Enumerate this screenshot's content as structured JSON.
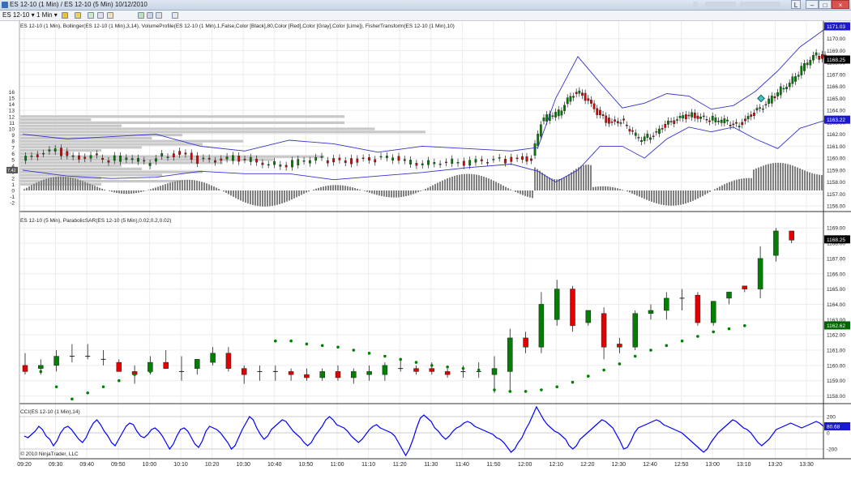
{
  "window": {
    "title": "ES 12-10 (1 Min) / ES 12-10 (5 Min)  10/12/2010",
    "btn_l": "L"
  },
  "toolbar": {
    "instrument": "ES 12-10",
    "interval": "1 Min"
  },
  "panels": {
    "top_label": "ES 12-10 (1 Min), Bollinger(ES 12-10 (1 Min),3,14), VolumeProfile(ES 12-10 (1 Min),1,False,Color [Black],80,Color [Red],Color [Gray],Color [Lime]), FisherTransform(ES 12-10 (1 Min),10)",
    "mid_label": "ES 12-10 (5 Min), ParabolicSAR(ES 12-10 (5 Min),0.02,0.2,0.02)",
    "cci_label": "CCI(ES 12-10 (1 Min),14)",
    "copyright": "© 2010 NinjaTrader, LLC"
  },
  "chart_data": [
    {
      "type": "candlestick",
      "name_panel": "top",
      "price_axis": [
        "1170.00",
        "1169.00",
        "1168.00",
        "1167.00",
        "1166.00",
        "1165.00",
        "1164.00",
        "1163.00",
        "1162.00",
        "1161.00",
        "1160.00",
        "1159.00",
        "1158.00",
        "1157.00",
        "1156.00"
      ],
      "fisher_axis": [
        "16",
        "15",
        "14",
        "13",
        "12",
        "11",
        "10",
        "9",
        "8",
        "7",
        "6",
        "5",
        "4",
        "3",
        "2",
        "1",
        "0",
        "-1",
        "-2"
      ],
      "ylim": [
        1155.6,
        1171.2
      ],
      "markers": {
        "price_last": "1168.25",
        "bb_upper": "1171.03",
        "bb_lower": "1163.22",
        "fisher_tag": "7.42"
      },
      "price_path_1min": [
        [
          0,
          1159.8
        ],
        [
          8,
          1160.2
        ],
        [
          16,
          1160.6
        ],
        [
          24,
          1160.0
        ],
        [
          32,
          1160.3
        ],
        [
          40,
          1159.9
        ],
        [
          48,
          1160.1
        ],
        [
          56,
          1159.6
        ],
        [
          64,
          1160.2
        ],
        [
          72,
          1160.4
        ],
        [
          80,
          1159.8
        ],
        [
          88,
          1159.7
        ],
        [
          96,
          1160.0
        ],
        [
          104,
          1159.9
        ],
        [
          112,
          1159.6
        ],
        [
          120,
          1159.5
        ],
        [
          128,
          1159.8
        ],
        [
          136,
          1159.9
        ],
        [
          144,
          1159.7
        ],
        [
          152,
          1159.8
        ],
        [
          160,
          1159.9
        ],
        [
          168,
          1160.0
        ],
        [
          176,
          1159.6
        ],
        [
          184,
          1159.7
        ],
        [
          192,
          1159.8
        ],
        [
          200,
          1159.6
        ],
        [
          208,
          1159.7
        ],
        [
          216,
          1159.8
        ],
        [
          224,
          1159.9
        ],
        [
          230,
          1160.0
        ],
        [
          234,
          1163.0
        ],
        [
          238,
          1163.6
        ],
        [
          242,
          1163.8
        ],
        [
          246,
          1165.0
        ],
        [
          250,
          1165.6
        ],
        [
          254,
          1165.0
        ],
        [
          258,
          1164.0
        ],
        [
          262,
          1163.3
        ],
        [
          266,
          1163.0
        ],
        [
          270,
          1163.2
        ],
        [
          274,
          1162.4
        ],
        [
          278,
          1161.6
        ],
        [
          282,
          1161.8
        ],
        [
          286,
          1162.2
        ],
        [
          290,
          1162.8
        ],
        [
          294,
          1163.0
        ],
        [
          298,
          1163.4
        ],
        [
          302,
          1163.6
        ],
        [
          306,
          1163.5
        ],
        [
          310,
          1163.3
        ],
        [
          314,
          1163.2
        ],
        [
          318,
          1163.0
        ],
        [
          322,
          1162.7
        ],
        [
          326,
          1163.2
        ],
        [
          330,
          1163.8
        ],
        [
          334,
          1164.2
        ],
        [
          338,
          1165.0
        ],
        [
          342,
          1165.8
        ],
        [
          346,
          1166.4
        ],
        [
          350,
          1167.2
        ],
        [
          354,
          1168.0
        ],
        [
          358,
          1168.6
        ],
        [
          362,
          1168.3
        ]
      ],
      "bollinger_upper": [
        [
          0,
          1162
        ],
        [
          20,
          1161.6
        ],
        [
          40,
          1161.8
        ],
        [
          60,
          1162
        ],
        [
          80,
          1161
        ],
        [
          100,
          1160.6
        ],
        [
          120,
          1161.5
        ],
        [
          140,
          1161.2
        ],
        [
          160,
          1160.5
        ],
        [
          180,
          1161
        ],
        [
          200,
          1160.8
        ],
        [
          220,
          1160.6
        ],
        [
          232,
          1160.9
        ],
        [
          240,
          1165
        ],
        [
          250,
          1168.5
        ],
        [
          260,
          1166.3
        ],
        [
          270,
          1164.2
        ],
        [
          280,
          1164.6
        ],
        [
          290,
          1165.4
        ],
        [
          300,
          1165.2
        ],
        [
          310,
          1164.1
        ],
        [
          320,
          1164.4
        ],
        [
          330,
          1165.6
        ],
        [
          340,
          1167.3
        ],
        [
          350,
          1169.3
        ],
        [
          362,
          1170.9
        ]
      ],
      "bollinger_lower": [
        [
          0,
          1159
        ],
        [
          20,
          1158.5
        ],
        [
          40,
          1158.3
        ],
        [
          60,
          1158.4
        ],
        [
          80,
          1158.9
        ],
        [
          100,
          1158.7
        ],
        [
          120,
          1158.7
        ],
        [
          140,
          1158.2
        ],
        [
          160,
          1158.5
        ],
        [
          180,
          1158.8
        ],
        [
          200,
          1159.2
        ],
        [
          220,
          1159.5
        ],
        [
          232,
          1158.9
        ],
        [
          240,
          1158
        ],
        [
          250,
          1159
        ],
        [
          260,
          1161
        ],
        [
          270,
          1161
        ],
        [
          280,
          1160
        ],
        [
          290,
          1161.6
        ],
        [
          300,
          1162.6
        ],
        [
          310,
          1162.2
        ],
        [
          320,
          1162.6
        ],
        [
          330,
          1161.6
        ],
        [
          340,
          1160.8
        ],
        [
          350,
          1162.5
        ],
        [
          362,
          1163.2
        ]
      ],
      "volume_profile": [
        [
          12,
          0.32
        ],
        [
          11.5,
          0.07
        ],
        [
          11,
          0.32
        ],
        [
          10.5,
          0.1
        ],
        [
          10,
          0.35
        ],
        [
          9.5,
          0.4
        ],
        [
          9,
          0.16
        ],
        [
          8.5,
          0.13
        ],
        [
          8,
          0.22
        ],
        [
          7.5,
          0.18
        ],
        [
          7,
          0.12
        ],
        [
          6.5,
          0.08
        ],
        [
          6,
          0.05
        ],
        [
          5.5,
          0.3
        ],
        [
          5,
          0.25
        ],
        [
          4.5,
          0.2
        ],
        [
          4,
          0.1
        ],
        [
          3.5,
          0.12
        ],
        [
          3,
          0.18
        ],
        [
          2.5,
          0.14
        ],
        [
          2,
          0.08
        ],
        [
          1.5,
          0.16
        ],
        [
          1,
          0.08
        ]
      ]
    },
    {
      "type": "candlestick",
      "name_panel": "middle",
      "price_axis": [
        "1169.00",
        "1168.00",
        "1167.00",
        "1166.00",
        "1165.00",
        "1164.00",
        "1163.00",
        "1162.00",
        "1161.00",
        "1160.00",
        "1159.00",
        "1158.00"
      ],
      "ylim": [
        1157.5,
        1169.7
      ],
      "markers": {
        "price_last": "1168.25",
        "sar_last": "1162.62"
      },
      "candles_5min": [
        [
          1160.0,
          1160.8,
          1159.4,
          1159.6
        ],
        [
          1159.8,
          1160.4,
          1159.4,
          1160.0
        ],
        [
          1160.0,
          1161.0,
          1159.6,
          1160.6
        ],
        [
          1160.6,
          1161.4,
          1160.2,
          1160.6
        ],
        [
          1160.6,
          1161.4,
          1160.4,
          1160.6
        ],
        [
          1160.4,
          1161.0,
          1160.0,
          1160.4
        ],
        [
          1160.2,
          1160.4,
          1159.6,
          1159.6
        ],
        [
          1159.6,
          1160.0,
          1158.8,
          1159.4
        ],
        [
          1159.6,
          1160.6,
          1159.4,
          1160.2
        ],
        [
          1160.2,
          1161.0,
          1159.8,
          1159.8
        ],
        [
          1159.6,
          1160.6,
          1159.0,
          1159.6
        ],
        [
          1159.8,
          1160.4,
          1159.4,
          1160.4
        ],
        [
          1160.2,
          1161.2,
          1160.0,
          1160.8
        ],
        [
          1160.8,
          1161.2,
          1159.6,
          1159.8
        ],
        [
          1159.8,
          1160.0,
          1158.8,
          1159.4
        ],
        [
          1159.6,
          1160.0,
          1159.0,
          1159.6
        ],
        [
          1159.6,
          1160.0,
          1159.0,
          1159.6
        ],
        [
          1159.6,
          1159.8,
          1159.0,
          1159.4
        ],
        [
          1159.4,
          1159.8,
          1159.0,
          1159.2
        ],
        [
          1159.2,
          1159.8,
          1159.0,
          1159.6
        ],
        [
          1159.6,
          1160.0,
          1159.0,
          1159.2
        ],
        [
          1159.2,
          1159.8,
          1158.8,
          1159.6
        ],
        [
          1159.4,
          1160.0,
          1159.0,
          1159.6
        ],
        [
          1159.4,
          1160.2,
          1159.0,
          1160.0
        ],
        [
          1159.8,
          1160.4,
          1159.6,
          1159.8
        ],
        [
          1159.8,
          1160.0,
          1159.4,
          1159.6
        ],
        [
          1159.8,
          1160.2,
          1159.4,
          1159.6
        ],
        [
          1159.6,
          1159.8,
          1159.2,
          1159.4
        ],
        [
          1159.6,
          1160.0,
          1159.2,
          1159.6
        ],
        [
          1159.6,
          1160.2,
          1159.2,
          1159.6
        ],
        [
          1159.4,
          1160.6,
          1158.2,
          1159.8
        ],
        [
          1159.6,
          1162.4,
          1158.2,
          1161.8
        ],
        [
          1161.8,
          1162.2,
          1160.8,
          1161.2
        ],
        [
          1161.2,
          1164.8,
          1160.8,
          1164.0
        ],
        [
          1163.0,
          1165.6,
          1162.6,
          1165.0
        ],
        [
          1165.0,
          1165.2,
          1162.2,
          1162.6
        ],
        [
          1162.8,
          1163.6,
          1162.6,
          1163.6
        ],
        [
          1163.4,
          1163.8,
          1160.4,
          1161.2
        ],
        [
          1161.4,
          1161.8,
          1160.8,
          1161.2
        ],
        [
          1161.2,
          1163.6,
          1161.0,
          1163.4
        ],
        [
          1163.4,
          1164.0,
          1163.0,
          1163.6
        ],
        [
          1163.6,
          1164.8,
          1163.0,
          1164.4
        ],
        [
          1164.4,
          1165.0,
          1163.6,
          1164.4
        ],
        [
          1164.6,
          1164.8,
          1162.6,
          1162.8
        ],
        [
          1162.8,
          1164.2,
          1162.6,
          1164.2
        ],
        [
          1164.4,
          1164.8,
          1164.0,
          1164.8
        ],
        [
          1165.2,
          1165.2,
          1164.8,
          1165.0
        ],
        [
          1165.0,
          1167.8,
          1164.4,
          1167.0
        ],
        [
          1167.2,
          1169.0,
          1166.8,
          1168.8
        ],
        [
          1168.8,
          1168.8,
          1168.0,
          1168.2
        ]
      ],
      "parabolic_sar": [
        [
          0,
          1159.6
        ],
        [
          1,
          1158.6
        ],
        [
          2,
          1157.8
        ],
        [
          3,
          1158.2
        ],
        [
          4,
          1158.6
        ],
        [
          5,
          1159.0
        ],
        [
          6,
          1159.4
        ],
        [
          7,
          1159.6
        ],
        [
          8,
          1161.6
        ],
        [
          9,
          1161.6
        ],
        [
          10,
          1161.4
        ],
        [
          11,
          1161.3
        ],
        [
          12,
          1161.2
        ],
        [
          13,
          1161.0
        ],
        [
          14,
          1160.8
        ],
        [
          15,
          1160.6
        ],
        [
          16,
          1160.4
        ],
        [
          17,
          1160.2
        ],
        [
          18,
          1160.0
        ],
        [
          19,
          1159.9
        ],
        [
          20,
          1159.8
        ],
        [
          21,
          1159.7
        ],
        [
          22,
          1158.4
        ],
        [
          23,
          1158.3
        ],
        [
          24,
          1158.3
        ],
        [
          25,
          1158.4
        ],
        [
          26,
          1158.6
        ],
        [
          27,
          1158.9
        ],
        [
          28,
          1159.3
        ],
        [
          29,
          1159.7
        ],
        [
          30,
          1160.1
        ],
        [
          31,
          1160.6
        ],
        [
          32,
          1161.0
        ],
        [
          33,
          1161.3
        ],
        [
          34,
          1161.6
        ],
        [
          35,
          1161.9
        ],
        [
          36,
          1162.2
        ],
        [
          37,
          1162.4
        ],
        [
          38,
          1162.6
        ]
      ]
    },
    {
      "type": "line",
      "name_panel": "cci",
      "series": [
        {
          "name": "CCI",
          "color": "#0000ff"
        }
      ],
      "y_axis": [
        "200",
        "0",
        "-200"
      ],
      "ylim": [
        -320,
        300
      ],
      "markers": {
        "cci_last": "80.68"
      },
      "values": [
        -40,
        -60,
        -20,
        20,
        80,
        40,
        -40,
        -80,
        -160,
        -100,
        0,
        60,
        80,
        40,
        -20,
        -80,
        -120,
        -60,
        40,
        120,
        160,
        100,
        20,
        -40,
        -120,
        -160,
        -80,
        0,
        80,
        120,
        100,
        20,
        -40,
        -60,
        -20,
        40,
        60,
        20,
        -40,
        -120,
        -200,
        -140,
        -40,
        40,
        60,
        20,
        -60,
        -140,
        -180,
        -100,
        20,
        80,
        60,
        40,
        0,
        -60,
        -120,
        -200,
        -160,
        -60,
        40,
        120,
        200,
        160,
        60,
        -20,
        -80,
        -40,
        40,
        80,
        120,
        160,
        140,
        80,
        20,
        -20,
        -60,
        -120,
        -160,
        -120,
        -40,
        20,
        80,
        160,
        200,
        160,
        100,
        80,
        60,
        20,
        -40,
        -80,
        -120,
        -80,
        -20,
        40,
        80,
        100,
        60,
        40,
        20,
        0,
        -40,
        -120,
        -200,
        -280,
        -200,
        -80,
        60,
        180,
        220,
        180,
        140,
        60,
        20,
        -40,
        -80,
        -40,
        20,
        60,
        80,
        120,
        140,
        120,
        80,
        60,
        40,
        20,
        0,
        -20,
        -60,
        -80,
        -120,
        -180,
        -240,
        -200,
        -120,
        -60,
        40,
        120,
        220,
        320,
        240,
        160,
        100,
        60,
        20,
        0,
        -40,
        -80,
        -160,
        -200,
        -160,
        -80,
        -40,
        0,
        40,
        80,
        120,
        160,
        140,
        100,
        60,
        -20,
        -100,
        -200,
        -180,
        -100,
        0,
        60,
        80,
        100,
        120,
        140,
        160,
        140,
        100,
        80,
        60,
        40,
        20,
        0,
        -40,
        -80,
        -120,
        -160,
        -200,
        -240,
        -200,
        -120,
        -60,
        0,
        40,
        80,
        120,
        160,
        140,
        100,
        60,
        40,
        0,
        -60,
        -120,
        -160,
        -120,
        -80,
        -20,
        40,
        60,
        80,
        100,
        120,
        100,
        80,
        60,
        80,
        100,
        120,
        140,
        120,
        80
      ]
    }
  ],
  "time_axis": [
    "09:20",
    "09:30",
    "09:40",
    "09:50",
    "10:00",
    "10:10",
    "10:20",
    "10:30",
    "10:40",
    "10:50",
    "11:00",
    "11:10",
    "11:20",
    "11:30",
    "11:40",
    "11:50",
    "12:00",
    "12:10",
    "12:20",
    "12:30",
    "12:40",
    "12:50",
    "13:00",
    "13:10",
    "13:20",
    "13:30"
  ],
  "colors": {
    "up_candle": "#007f00",
    "down_candle": "#e00000",
    "bollinger": "#3333cc",
    "cci": "#0000ff",
    "fisher": "#808080",
    "sar": "#008000",
    "volume_profile": "#c8c8c8",
    "axis_tag_blue": "#1a1acc",
    "axis_tag_green": "#006400",
    "axis_tag_black": "#000000"
  }
}
